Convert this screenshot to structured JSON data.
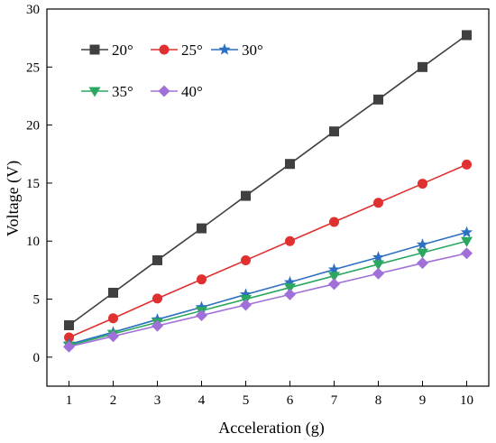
{
  "chart_data": {
    "type": "line",
    "title": "",
    "xlabel": "Acceleration (g)",
    "ylabel": "Voltage (V)",
    "xlim": [
      0.5,
      10.5
    ],
    "ylim": [
      -2.5,
      30
    ],
    "xticks": [
      1,
      2,
      3,
      4,
      5,
      6,
      7,
      8,
      9,
      10
    ],
    "yticks": [
      0,
      5,
      10,
      15,
      20,
      25,
      30
    ],
    "grid": false,
    "legend_position": "top-left",
    "x": [
      1,
      2,
      3,
      4,
      5,
      6,
      7,
      8,
      9,
      10
    ],
    "series": [
      {
        "name": "20°",
        "color": "#404040",
        "marker": "square",
        "values": [
          2.75,
          5.55,
          8.35,
          11.1,
          13.9,
          16.65,
          19.45,
          22.2,
          25.0,
          27.75
        ]
      },
      {
        "name": "25°",
        "color": "#e03030",
        "marker": "circle",
        "values": [
          1.7,
          3.35,
          5.05,
          6.7,
          8.35,
          10.0,
          11.65,
          13.3,
          14.95,
          16.6
        ]
      },
      {
        "name": "30°",
        "color": "#2d6fc0",
        "marker": "star",
        "values": [
          1.1,
          2.15,
          3.25,
          4.3,
          5.4,
          6.45,
          7.55,
          8.6,
          9.7,
          10.75
        ]
      },
      {
        "name": "35°",
        "color": "#2aa860",
        "marker": "triangle-down",
        "values": [
          1.0,
          2.0,
          3.0,
          4.0,
          5.0,
          6.0,
          7.0,
          8.0,
          9.0,
          10.0
        ]
      },
      {
        "name": "40°",
        "color": "#a070d8",
        "marker": "diamond",
        "values": [
          0.9,
          1.8,
          2.7,
          3.6,
          4.5,
          5.4,
          6.3,
          7.2,
          8.1,
          8.95
        ]
      }
    ]
  }
}
